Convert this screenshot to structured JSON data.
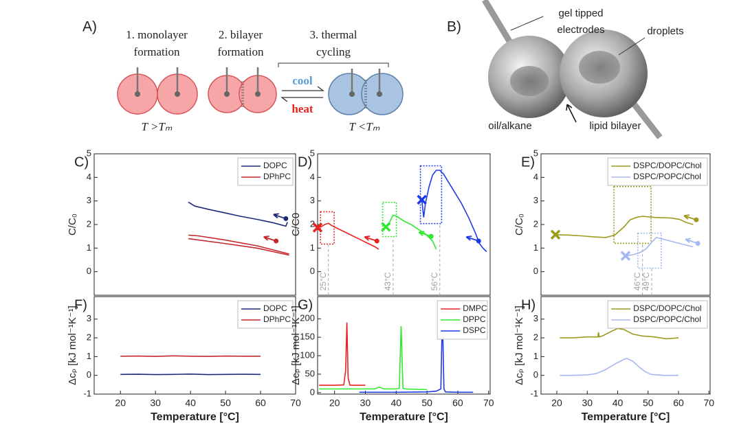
{
  "schematic": {
    "label": "A)",
    "steps": [
      [
        "1. monolayer",
        "formation"
      ],
      [
        "2. bilayer",
        "formation"
      ],
      [
        "3. thermal",
        "cycling"
      ]
    ],
    "cool": "cool",
    "heat": "heat",
    "above": "T >Tₘ",
    "below": "T <Tₘ"
  },
  "photo": {
    "label": "B)",
    "electrodes": [
      "gel tipped",
      "electrodes"
    ],
    "droplets": "droplets",
    "oil": "oil/alkane",
    "bilayer": "lipid bilayer"
  },
  "chart_data": [
    {
      "type": "line",
      "panel": "C)",
      "ylabel": "C/C₀",
      "xlim": [
        0,
        62
      ],
      "ylim": [
        -1,
        5
      ],
      "yticks": [
        0,
        1,
        2,
        3,
        4,
        5
      ],
      "legend": "top-right",
      "series": [
        {
          "name": "DOPC",
          "color": "#1b2a78",
          "x": [
            29,
            31,
            35,
            40,
            45,
            50,
            55,
            59,
            59.5
          ],
          "values": [
            2.95,
            2.78,
            2.65,
            2.5,
            2.35,
            2.22,
            2.08,
            1.93,
            2.1
          ],
          "dot": {
            "x": 59,
            "y": 2.25
          }
        },
        {
          "name": "DPhPC",
          "color": "#c4282c",
          "x": [
            29,
            32,
            40,
            50,
            60,
            null,
            29,
            40,
            50,
            60
          ],
          "values": [
            1.55,
            1.52,
            1.35,
            1.1,
            0.75,
            null,
            1.4,
            1.2,
            1.0,
            0.7
          ],
          "dot": {
            "x": 56,
            "y": 1.3
          }
        }
      ]
    },
    {
      "type": "line",
      "panel": "D)",
      "ylabel": "C/C0",
      "xlim": [
        22,
        70
      ],
      "ylim": [
        -1,
        5
      ],
      "yticks": [
        0,
        1,
        2,
        3,
        4,
        5
      ],
      "highlights": [
        {
          "color": "#e8211f",
          "xlim": [
            22.8,
            26.6
          ],
          "ylim": [
            1.17,
            2.54
          ]
        },
        {
          "color": "#2ee82e",
          "xlim": [
            40.1,
            43.9
          ],
          "ylim": [
            1.49,
            2.94
          ]
        },
        {
          "color": "#1c3ae6",
          "xlim": [
            50.6,
            56.5
          ],
          "ylim": [
            2.04,
            4.49
          ]
        }
      ],
      "annotations": [
        {
          "x": 25,
          "label": "25°C"
        },
        {
          "x": 43,
          "label": "43°C"
        },
        {
          "x": 56,
          "label": "56°C"
        }
      ],
      "series": [
        {
          "color": "#e8211f",
          "x": [
            22,
            23,
            24,
            25,
            26,
            28,
            30,
            32,
            34,
            36,
            38,
            39
          ],
          "values": [
            1.87,
            1.9,
            2.0,
            2.05,
            1.95,
            1.8,
            1.65,
            1.5,
            1.35,
            1.2,
            1.05,
            0.95
          ],
          "dot": {
            "x": 38.5,
            "y": 1.3
          },
          "cross": {
            "x": 22,
            "y": 1.87
          }
        },
        {
          "color": "#2ee82e",
          "x": [
            41,
            42,
            43,
            44,
            46,
            48,
            50,
            52,
            54,
            55
          ],
          "values": [
            1.9,
            2.1,
            2.4,
            2.35,
            2.15,
            2.0,
            1.8,
            1.6,
            1.3,
            0.95
          ],
          "dot": {
            "x": 53.6,
            "y": 1.5
          },
          "cross": {
            "x": 41,
            "y": 1.9
          }
        },
        {
          "color": "#1c3ae6",
          "x": [
            51,
            51.5,
            52,
            53,
            54,
            55,
            56,
            57,
            58,
            60,
            62,
            64,
            66,
            67,
            68,
            69
          ],
          "values": [
            3.05,
            2.3,
            2.9,
            3.6,
            4.1,
            4.3,
            4.3,
            4.15,
            3.9,
            3.4,
            2.9,
            2.3,
            1.6,
            1.2,
            1.0,
            0.85
          ],
          "dot": {
            "x": 66.8,
            "y": 1.3
          },
          "cross": {
            "x": 51,
            "y": 3.05
          }
        }
      ]
    },
    {
      "type": "line",
      "panel": "E)",
      "ylabel": "C/C₀",
      "xlim": [
        13,
        68
      ],
      "ylim": [
        -1,
        5
      ],
      "yticks": [
        0,
        1,
        2,
        3,
        4,
        5
      ],
      "legend": "top-right",
      "highlights": [
        {
          "color": "#9b9a1c",
          "xlim": [
            36.7,
            48.8
          ],
          "ylim": [
            1.2,
            3.61
          ]
        },
        {
          "color": "#a3b8f0",
          "xlim": [
            44.5,
            52.1
          ],
          "ylim": [
            0.15,
            1.63
          ]
        }
      ],
      "annotations": [
        {
          "x": 46,
          "label": "46°C"
        },
        {
          "x": 49,
          "label": "49°C"
        }
      ],
      "series": [
        {
          "name": "DSPC/DOPC/Chol",
          "color": "#9b9a1c",
          "x": [
            17.7,
            22,
            26,
            30,
            34,
            37,
            40,
            42,
            44,
            46,
            50,
            55,
            58,
            60,
            62.5
          ],
          "values": [
            1.57,
            1.55,
            1.52,
            1.48,
            1.45,
            1.55,
            1.9,
            2.2,
            2.3,
            2.35,
            2.3,
            2.28,
            2.22,
            2.1,
            2.0
          ],
          "dot": {
            "x": 63.5,
            "y": 2.2
          },
          "cross": {
            "x": 17.7,
            "y": 1.57
          }
        },
        {
          "name": "DSPC/POPC/Chol",
          "color": "#a3b8f0",
          "x": [
            40.5,
            43,
            45,
            47,
            49,
            50.5,
            52,
            55,
            58,
            62.5
          ],
          "values": [
            0.67,
            0.72,
            0.8,
            0.95,
            1.25,
            1.45,
            1.4,
            1.3,
            1.2,
            1.05
          ],
          "dot": {
            "x": 64,
            "y": 1.2
          },
          "cross": {
            "x": 40.5,
            "y": 0.67
          }
        }
      ]
    },
    {
      "type": "line",
      "panel": "F)",
      "ylabel": "Δcₚ [kJ mol⁻¹K⁻¹]",
      "xlabel": "Temperature [°C]",
      "xlim": [
        12.5,
        70
      ],
      "ylim": [
        -1,
        4.2
      ],
      "xticks": [
        20,
        30,
        40,
        50,
        60,
        70
      ],
      "yticks": [
        -1,
        0,
        1,
        2,
        3
      ],
      "legend": "top-right",
      "series": [
        {
          "name": "DOPC",
          "color": "#1b2a78",
          "x": [
            20,
            25,
            30,
            35,
            40,
            45,
            50,
            55,
            60
          ],
          "values": [
            0.05,
            0.06,
            0.04,
            0.05,
            0.07,
            0.04,
            0.05,
            0.06,
            0.05
          ]
        },
        {
          "name": "DPhPC",
          "color": "#c4282c",
          "x": [
            20,
            25,
            30,
            35,
            40,
            45,
            50,
            55,
            60
          ],
          "values": [
            1.02,
            1.03,
            1.01,
            1.04,
            1.02,
            1.01,
            1.03,
            1.02,
            1.02
          ]
        }
      ]
    },
    {
      "type": "line",
      "panel": "G)",
      "ylabel": "Δcₚ [kJ mol⁻¹K⁻¹]",
      "xlabel": "Temperature [°C]",
      "xlim": [
        14.5,
        70.5
      ],
      "ylim": [
        -4,
        260
      ],
      "xticks": [
        20,
        30,
        40,
        50,
        60,
        70
      ],
      "yticks": [
        0,
        50,
        100,
        150,
        200
      ],
      "legend": "top-right",
      "series": [
        {
          "name": "DMPC",
          "color": "#e8211f",
          "x": [
            15,
            20,
            23,
            23.6,
            24,
            24.4,
            25,
            30
          ],
          "values": [
            20,
            20,
            21,
            60,
            190,
            40,
            20,
            20
          ]
        },
        {
          "name": "DPPC",
          "color": "#2ee82e",
          "x": [
            15,
            25,
            33,
            34.5,
            36,
            40,
            41,
            41.6,
            42.2,
            43,
            50
          ],
          "values": [
            10,
            10,
            10,
            15,
            10,
            10,
            12,
            180,
            12,
            10,
            8
          ]
        },
        {
          "name": "DSPC",
          "color": "#1c3ae6",
          "x": [
            28,
            40,
            50,
            53,
            54.5,
            55,
            55.5,
            56,
            60,
            65
          ],
          "values": [
            1,
            1,
            2,
            4,
            10,
            215,
            10,
            2,
            1,
            1
          ]
        }
      ]
    },
    {
      "type": "line",
      "panel": "H)",
      "ylabel": "Δcₚ [kJ mol⁻¹K⁻¹]",
      "xlabel": "Temperature [°C]",
      "xlim": [
        14.8,
        70.4
      ],
      "ylim": [
        -1,
        4.2
      ],
      "xticks": [
        20,
        30,
        40,
        50,
        60,
        70
      ],
      "yticks": [
        -1,
        0,
        1,
        2,
        3
      ],
      "legend": "top-right",
      "series": [
        {
          "name": "DSPC/DOPC/Chol",
          "color": "#9b9a1c",
          "x": [
            21,
            25,
            30,
            33.5,
            33.7,
            33.9,
            35,
            38,
            40,
            42,
            45,
            48,
            52,
            56,
            60
          ],
          "values": [
            2.0,
            2.0,
            2.05,
            2.05,
            2.3,
            2.05,
            2.1,
            2.35,
            2.5,
            2.45,
            2.2,
            2.1,
            2.05,
            1.95,
            2.0
          ]
        },
        {
          "name": "DSPC/POPC/Chol",
          "color": "#a3b8f0",
          "x": [
            21,
            25,
            30,
            33,
            36,
            39,
            42,
            43,
            45,
            47,
            49,
            51,
            55,
            60
          ],
          "values": [
            0,
            0,
            0.02,
            0.1,
            0.3,
            0.6,
            0.85,
            0.9,
            0.75,
            0.45,
            0.2,
            0.05,
            0,
            0
          ]
        }
      ]
    }
  ]
}
